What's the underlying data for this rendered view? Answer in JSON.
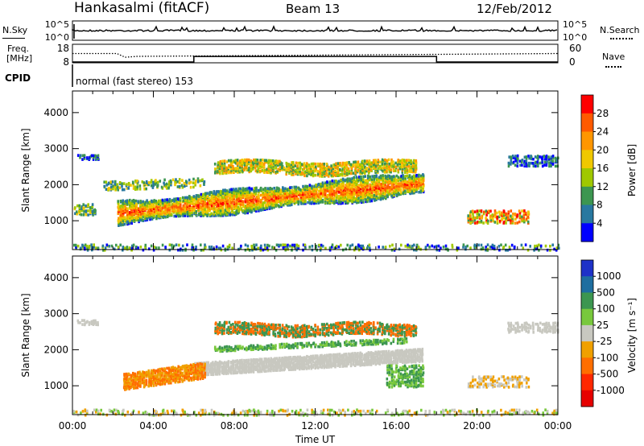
{
  "header": {
    "station": "Hankasalmi (fitACF)",
    "beam": "Beam 13",
    "date": "12/Feb/2012"
  },
  "side_labels": {
    "nsky": "N.Sky",
    "nsearch": "N.Search",
    "freq_line1": "Freq.",
    "freq_line2": "[MHz]",
    "nave": "Nave",
    "cpid": "CPID"
  },
  "cpid_text": "normal (fast stereo) 153",
  "chart_data": [
    {
      "type": "line",
      "name": "noise",
      "series": [
        {
          "name": "N.Sky",
          "style": "solid"
        },
        {
          "name": "N.Search",
          "style": "dotted"
        }
      ],
      "yticks_left": [
        "10^5",
        "10^0"
      ],
      "yticks_right": [
        "10^5",
        "10^0"
      ]
    },
    {
      "type": "line",
      "name": "frequency-nave",
      "yticks_left": [
        "18",
        "8"
      ],
      "yticks_right": [
        "60",
        "0"
      ],
      "series": [
        {
          "name": "Freq.",
          "points": [
            [
              0,
              13
            ],
            [
              2.2,
              13
            ],
            [
              2.6,
              11
            ],
            [
              3.2,
              11.5
            ],
            [
              24,
              13
            ]
          ]
        },
        {
          "name": "Nave",
          "points": [
            [
              0,
              0
            ],
            [
              6,
              0
            ],
            [
              6,
              18
            ],
            [
              18,
              18
            ],
            [
              18,
              0
            ],
            [
              24,
              0
            ]
          ]
        }
      ]
    },
    {
      "type": "heatmap",
      "name": "power",
      "ylabel": "Slant Range [km]",
      "yticks": [
        1000,
        2000,
        3000,
        4000
      ],
      "ylim": [
        200,
        4600
      ],
      "xlim": [
        0,
        24
      ],
      "colorbar_label": "Power [dB]",
      "colorbar_ticks": [
        "28",
        "24",
        "20",
        "16",
        "12",
        "8",
        "4"
      ],
      "colorbar_colors": [
        "#ff0000",
        "#ff5a00",
        "#ff9600",
        "#f0c800",
        "#a0c800",
        "#3c9650",
        "#2878a0",
        "#0000ff"
      ]
    },
    {
      "type": "heatmap",
      "name": "velocity",
      "ylabel": "Slant Range [km]",
      "yticks": [
        1000,
        2000,
        3000,
        4000
      ],
      "ylim": [
        200,
        4600
      ],
      "xlim": [
        0,
        24
      ],
      "xlabel": "Time UT",
      "xticks": [
        "00:00",
        "04:00",
        "08:00",
        "12:00",
        "16:00",
        "20:00",
        "00:00"
      ],
      "colorbar_label": "Velocity [m s⁻¹]",
      "colorbar_ticks": [
        "1000",
        "500",
        "100",
        "25",
        "-25",
        "-100",
        "-500",
        "-1000"
      ],
      "colorbar_colors": [
        "#1e32c8",
        "#1e6ea0",
        "#3c9650",
        "#78c83c",
        "#c8c8c0",
        "#f0a000",
        "#ff6e00",
        "#ff2800",
        "#e60000"
      ]
    }
  ]
}
